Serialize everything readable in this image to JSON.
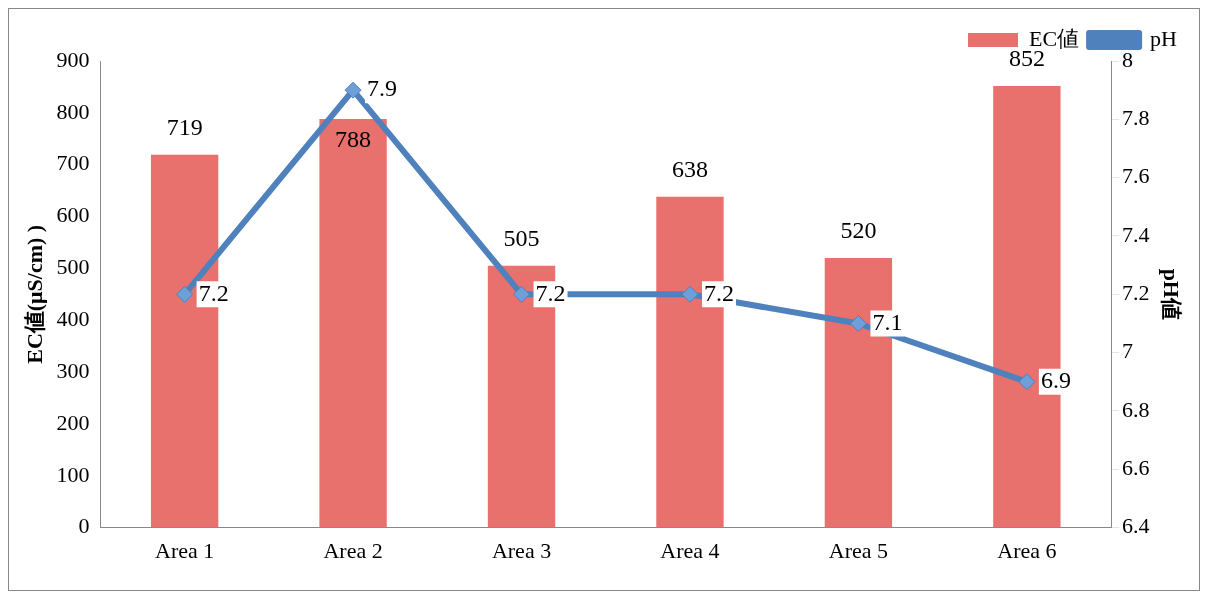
{
  "chart_data": {
    "type": "bar",
    "categories": [
      "Area 1",
      "Area 2",
      "Area 3",
      "Area 4",
      "Area 5",
      "Area 6"
    ],
    "series": [
      {
        "name": "EC値",
        "color": "#e8706d",
        "values": [
          719,
          788,
          505,
          638,
          520,
          852
        ]
      },
      {
        "name": "pH",
        "type": "line",
        "axis": "y2",
        "color": "#4f81bd",
        "marker": "diamond",
        "values": [
          7.2,
          7.9,
          7.2,
          7.2,
          7.1,
          6.9
        ]
      }
    ],
    "ylabel": "EC値(μS/cm) )",
    "y2label": "pH値",
    "ylim": [
      0,
      900
    ],
    "yticks": [
      0,
      100,
      200,
      300,
      400,
      500,
      600,
      700,
      800,
      900
    ],
    "y2lim": [
      6.4,
      8
    ],
    "y2ticks": [
      6.4,
      6.6,
      6.8,
      7,
      7.2,
      7.4,
      7.6,
      7.8,
      8
    ],
    "grid": false,
    "legend": "top right",
    "data_labels": true
  }
}
